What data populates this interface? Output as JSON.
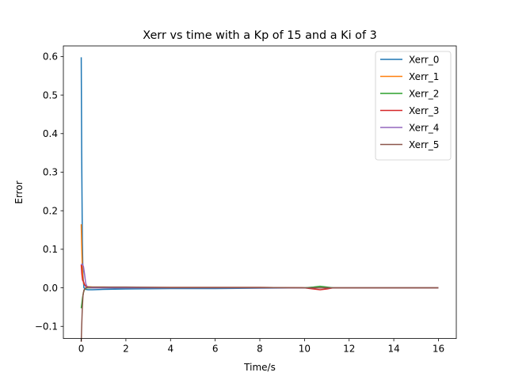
{
  "chart_data": {
    "type": "line",
    "title": "Xerr vs time with a Kp of 15 and a Ki of 3",
    "xlabel": "Time/s",
    "ylabel": "Error",
    "xlim": [
      -0.8,
      16.8
    ],
    "ylim": [
      -0.1315,
      0.6275
    ],
    "xticks": [
      0,
      2,
      4,
      6,
      8,
      10,
      12,
      14,
      16
    ],
    "yticks": [
      -0.1,
      0.0,
      0.1,
      0.2,
      0.3,
      0.4,
      0.5,
      0.6
    ],
    "ytick_labels": [
      "−0.1",
      "0.0",
      "0.1",
      "0.2",
      "0.3",
      "0.4",
      "0.5",
      "0.6"
    ],
    "grid": false,
    "legend": "top-right",
    "series": [
      {
        "name": "Xerr_0",
        "color": "#1f77b4",
        "x": [
          0,
          0.02,
          0.05,
          0.08,
          0.12,
          0.2,
          0.3,
          0.5,
          1,
          2,
          4,
          6,
          8,
          10,
          10.5,
          11,
          12,
          14,
          16
        ],
        "y": [
          0.598,
          0.35,
          0.12,
          0.03,
          0.0,
          -0.004,
          -0.005,
          -0.005,
          -0.004,
          -0.003,
          -0.002,
          -0.002,
          -0.001,
          0.0,
          0.0,
          0.0,
          0.0,
          0.0,
          0.0
        ]
      },
      {
        "name": "Xerr_1",
        "color": "#ff7f0e",
        "x": [
          0,
          0.02,
          0.05,
          0.08,
          0.12,
          0.2,
          0.3,
          0.5,
          1,
          2,
          4,
          6,
          8,
          10,
          12,
          14,
          16
        ],
        "y": [
          0.165,
          0.11,
          0.05,
          0.02,
          0.01,
          0.005,
          0.003,
          0.002,
          0.002,
          0.001,
          0.001,
          0.001,
          0.001,
          0.0,
          0.0,
          0.0,
          0.0
        ]
      },
      {
        "name": "Xerr_2",
        "color": "#2ca02c",
        "x": [
          0,
          0.03,
          0.06,
          0.1,
          0.15,
          0.2,
          0.3,
          0.5,
          1,
          2,
          4,
          6,
          8,
          10,
          10.4,
          10.7,
          11.0,
          11.3,
          12,
          14,
          16
        ],
        "y": [
          -0.053,
          -0.04,
          -0.025,
          -0.012,
          -0.004,
          -0.001,
          0.0,
          0.0,
          0.0,
          0.0,
          0.0,
          0.0,
          0.0,
          0.0,
          0.002,
          0.004,
          0.002,
          0.0,
          0.0,
          0.0,
          0.0
        ]
      },
      {
        "name": "Xerr_3",
        "color": "#d62728",
        "x": [
          0,
          0.03,
          0.06,
          0.1,
          0.15,
          0.2,
          0.3,
          0.5,
          1,
          2,
          4,
          6,
          8,
          10,
          10.4,
          10.7,
          11.0,
          11.3,
          12,
          14,
          16
        ],
        "y": [
          0.06,
          0.035,
          0.02,
          0.016,
          0.008,
          0.004,
          0.002,
          0.001,
          0.001,
          0.001,
          0.001,
          0.001,
          0.001,
          0.0,
          -0.003,
          -0.005,
          -0.003,
          0.0,
          0.0,
          0.0,
          0.0
        ]
      },
      {
        "name": "Xerr_4",
        "color": "#9467bd",
        "x": [
          0,
          0.05,
          0.1,
          0.15,
          0.2,
          0.25,
          0.3,
          0.5,
          1,
          2,
          4,
          6,
          8,
          10,
          12,
          14,
          16
        ],
        "y": [
          0.06,
          0.062,
          0.055,
          0.035,
          0.012,
          0.004,
          0.001,
          0.0,
          0.0,
          0.0,
          0.0,
          0.0,
          0.0,
          0.0,
          0.0,
          0.0,
          0.0
        ]
      },
      {
        "name": "Xerr_5",
        "color": "#8c564b",
        "x": [
          0,
          0.02,
          0.05,
          0.08,
          0.12,
          0.2,
          0.3,
          0.5,
          1,
          2,
          4,
          6,
          8,
          10,
          12,
          14,
          16
        ],
        "y": [
          -0.14,
          -0.1,
          -0.05,
          -0.02,
          -0.006,
          0.0,
          0.002,
          0.002,
          0.002,
          0.002,
          0.001,
          0.001,
          0.001,
          0.0,
          0.0,
          0.0,
          0.0
        ]
      }
    ]
  }
}
